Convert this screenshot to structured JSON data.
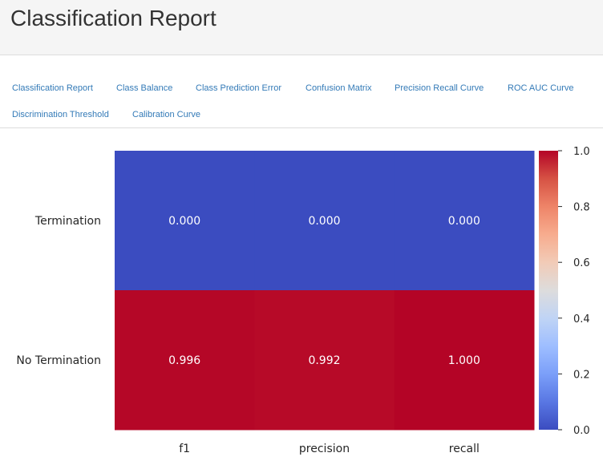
{
  "header": {
    "title": "Classification Report"
  },
  "tabs": [
    {
      "label": "Classification Report"
    },
    {
      "label": "Class Balance"
    },
    {
      "label": "Class Prediction Error"
    },
    {
      "label": "Confusion Matrix"
    },
    {
      "label": "Precision Recall Curve"
    },
    {
      "label": "ROC AUC Curve"
    },
    {
      "label": "Discrimination Threshold"
    },
    {
      "label": "Calibration Curve"
    }
  ],
  "colors": {
    "low": "#3b4cc0",
    "high": "#b40426",
    "tab_link": "#337ab7"
  },
  "chart_data": {
    "type": "heatmap",
    "rows": [
      "Termination",
      "No Termination"
    ],
    "columns": [
      "f1",
      "precision",
      "recall"
    ],
    "values": [
      [
        0.0,
        0.0,
        0.0
      ],
      [
        0.996,
        0.992,
        1.0
      ]
    ],
    "cell_labels": [
      [
        "0.000",
        "0.000",
        "0.000"
      ],
      [
        "0.996",
        "0.992",
        "1.000"
      ]
    ],
    "colorbar": {
      "range": [
        0.0,
        1.0
      ],
      "ticks": [
        "0.0",
        "0.2",
        "0.4",
        "0.6",
        "0.8",
        "1.0"
      ],
      "colormap": "coolwarm"
    }
  }
}
